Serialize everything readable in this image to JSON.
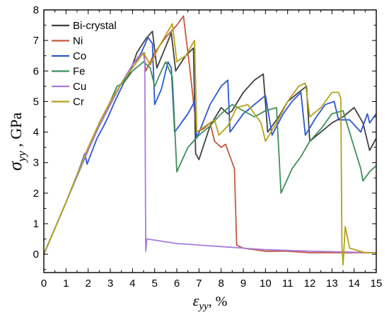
{
  "chart_data": {
    "type": "line",
    "xlabel": "ε_yy, %",
    "ylabel": "σ_yy , GPa",
    "xlabel_parts": {
      "symbol": "ε",
      "sub": "yy",
      "suffix": ", %"
    },
    "ylabel_parts": {
      "symbol": "σ",
      "sub": "yy",
      "suffix": " , GPa"
    },
    "xlim": [
      0,
      15
    ],
    "ylim": [
      -0.6,
      8
    ],
    "x_ticks": [
      "0",
      "1",
      "2",
      "3",
      "4",
      "5",
      "6",
      "7",
      "8",
      "9",
      "10",
      "11",
      "12",
      "13",
      "14",
      "15"
    ],
    "y_ticks": [
      "0",
      "1",
      "2",
      "3",
      "4",
      "5",
      "6",
      "7",
      "8"
    ],
    "grid": false,
    "legend_position": "top-left",
    "series": [
      {
        "name": "Bi-crystal",
        "color": "#404040",
        "points": [
          [
            0,
            0
          ],
          [
            0.5,
            0.85
          ],
          [
            1.0,
            1.7
          ],
          [
            1.5,
            2.6
          ],
          [
            2.0,
            3.45
          ],
          [
            2.5,
            4.2
          ],
          [
            3.0,
            4.9
          ],
          [
            3.5,
            5.6
          ],
          [
            3.8,
            5.8
          ],
          [
            4.2,
            6.6
          ],
          [
            4.6,
            7.05
          ],
          [
            4.9,
            7.3
          ],
          [
            5.1,
            6.1
          ],
          [
            5.5,
            6.8
          ],
          [
            5.75,
            7.25
          ],
          [
            5.95,
            6.0
          ],
          [
            6.4,
            6.5
          ],
          [
            6.75,
            6.75
          ],
          [
            6.85,
            3.3
          ],
          [
            7.0,
            3.1
          ],
          [
            7.5,
            4.2
          ],
          [
            8.0,
            4.8
          ],
          [
            8.3,
            4.6
          ],
          [
            8.5,
            4.7
          ],
          [
            9.0,
            5.3
          ],
          [
            9.5,
            5.7
          ],
          [
            9.9,
            5.9
          ],
          [
            10.1,
            4.0
          ],
          [
            10.6,
            4.5
          ],
          [
            11.0,
            5.0
          ],
          [
            11.5,
            5.3
          ],
          [
            11.85,
            5.5
          ],
          [
            12.0,
            3.7
          ],
          [
            12.5,
            4.0
          ],
          [
            13.0,
            4.3
          ],
          [
            13.5,
            4.5
          ],
          [
            14.0,
            4.8
          ],
          [
            14.4,
            4.3
          ],
          [
            14.7,
            3.4
          ],
          [
            15.0,
            3.8
          ]
        ]
      },
      {
        "name": "Ni",
        "color": "#c8573c",
        "points": [
          [
            0,
            0
          ],
          [
            0.5,
            0.85
          ],
          [
            1.0,
            1.7
          ],
          [
            1.5,
            2.6
          ],
          [
            2.0,
            3.4
          ],
          [
            2.5,
            4.2
          ],
          [
            3.0,
            4.9
          ],
          [
            3.5,
            5.6
          ],
          [
            4.0,
            6.2
          ],
          [
            4.5,
            6.6
          ],
          [
            4.6,
            6.0
          ],
          [
            5.0,
            6.6
          ],
          [
            5.5,
            7.1
          ],
          [
            6.0,
            7.5
          ],
          [
            6.3,
            7.8
          ],
          [
            6.6,
            6.0
          ],
          [
            6.9,
            4.0
          ],
          [
            7.2,
            4.1
          ],
          [
            7.5,
            4.3
          ],
          [
            7.7,
            3.7
          ],
          [
            8.0,
            3.5
          ],
          [
            8.2,
            3.6
          ],
          [
            8.4,
            3.2
          ],
          [
            8.6,
            2.8
          ],
          [
            8.7,
            0.3
          ],
          [
            9.0,
            0.2
          ],
          [
            9.5,
            0.15
          ],
          [
            10.0,
            0.1
          ],
          [
            11.0,
            0.1
          ],
          [
            12.0,
            0.05
          ],
          [
            13.0,
            0.05
          ],
          [
            14.0,
            0.05
          ],
          [
            15.0,
            0.05
          ]
        ]
      },
      {
        "name": "Co",
        "color": "#2c56d6",
        "points": [
          [
            0,
            0
          ],
          [
            0.5,
            0.85
          ],
          [
            1.0,
            1.7
          ],
          [
            1.5,
            2.6
          ],
          [
            1.85,
            3.3
          ],
          [
            1.95,
            2.95
          ],
          [
            2.4,
            3.8
          ],
          [
            2.7,
            4.2
          ],
          [
            2.9,
            4.5
          ],
          [
            3.2,
            5.0
          ],
          [
            3.6,
            5.6
          ],
          [
            4.0,
            6.2
          ],
          [
            4.4,
            6.6
          ],
          [
            4.7,
            7.1
          ],
          [
            4.9,
            6.9
          ],
          [
            5.0,
            4.9
          ],
          [
            5.3,
            5.4
          ],
          [
            5.6,
            6.3
          ],
          [
            5.75,
            6.1
          ],
          [
            5.9,
            4.0
          ],
          [
            6.5,
            4.6
          ],
          [
            6.8,
            5.0
          ],
          [
            6.9,
            3.8
          ],
          [
            7.5,
            4.9
          ],
          [
            8.0,
            5.5
          ],
          [
            8.3,
            5.7
          ],
          [
            8.4,
            4.0
          ],
          [
            9.0,
            4.6
          ],
          [
            9.5,
            4.9
          ],
          [
            10.0,
            5.2
          ],
          [
            10.3,
            3.9
          ],
          [
            10.8,
            4.6
          ],
          [
            11.2,
            5.0
          ],
          [
            11.6,
            5.3
          ],
          [
            11.8,
            3.9
          ],
          [
            12.3,
            4.5
          ],
          [
            12.7,
            4.9
          ],
          [
            13.1,
            5.0
          ],
          [
            13.3,
            4.4
          ],
          [
            13.8,
            4.4
          ],
          [
            14.3,
            4.0
          ],
          [
            14.6,
            4.6
          ],
          [
            14.7,
            4.3
          ],
          [
            15.0,
            4.6
          ]
        ]
      },
      {
        "name": "Fe",
        "color": "#3f8f5a",
        "points": [
          [
            0,
            0
          ],
          [
            0.5,
            0.85
          ],
          [
            1.0,
            1.7
          ],
          [
            1.5,
            2.55
          ],
          [
            2.0,
            3.4
          ],
          [
            2.5,
            4.3
          ],
          [
            3.0,
            5.0
          ],
          [
            3.3,
            5.5
          ],
          [
            3.6,
            5.6
          ],
          [
            4.0,
            6.0
          ],
          [
            4.5,
            6.3
          ],
          [
            4.8,
            6.1
          ],
          [
            5.0,
            5.5
          ],
          [
            5.3,
            6.0
          ],
          [
            5.5,
            6.3
          ],
          [
            5.8,
            5.8
          ],
          [
            6.0,
            2.7
          ],
          [
            6.5,
            3.5
          ],
          [
            7.0,
            3.9
          ],
          [
            7.5,
            4.2
          ],
          [
            8.0,
            4.6
          ],
          [
            8.5,
            4.9
          ],
          [
            9.0,
            4.7
          ],
          [
            9.5,
            4.5
          ],
          [
            10.0,
            4.7
          ],
          [
            10.5,
            4.8
          ],
          [
            10.7,
            2.0
          ],
          [
            11.2,
            2.8
          ],
          [
            11.6,
            3.2
          ],
          [
            12.0,
            3.7
          ],
          [
            12.5,
            4.1
          ],
          [
            12.9,
            4.5
          ],
          [
            13.0,
            4.6
          ],
          [
            13.5,
            4.7
          ],
          [
            14.0,
            3.5
          ],
          [
            14.3,
            2.8
          ],
          [
            14.4,
            2.4
          ],
          [
            14.7,
            2.7
          ],
          [
            15.0,
            2.9
          ]
        ]
      },
      {
        "name": "Cu",
        "color": "#a97ce0",
        "points": [
          [
            0,
            0
          ],
          [
            0.5,
            0.85
          ],
          [
            1.0,
            1.7
          ],
          [
            1.5,
            2.55
          ],
          [
            2.0,
            3.4
          ],
          [
            2.5,
            4.2
          ],
          [
            3.0,
            4.9
          ],
          [
            3.5,
            5.6
          ],
          [
            4.0,
            6.2
          ],
          [
            4.3,
            6.5
          ],
          [
            4.55,
            6.6
          ],
          [
            4.6,
            0.1
          ],
          [
            4.65,
            0.5
          ],
          [
            6.0,
            0.35
          ],
          [
            8.0,
            0.25
          ],
          [
            10.0,
            0.15
          ],
          [
            12.0,
            0.1
          ],
          [
            15.0,
            0.05
          ]
        ]
      },
      {
        "name": "Cr",
        "color": "#b5a11b",
        "points": [
          [
            0,
            0
          ],
          [
            0.5,
            0.85
          ],
          [
            1.0,
            1.7
          ],
          [
            1.5,
            2.6
          ],
          [
            2.0,
            3.5
          ],
          [
            2.5,
            4.3
          ],
          [
            3.0,
            5.0
          ],
          [
            3.5,
            5.6
          ],
          [
            4.0,
            6.1
          ],
          [
            4.5,
            6.6
          ],
          [
            4.8,
            6.2
          ],
          [
            5.2,
            6.8
          ],
          [
            5.6,
            7.3
          ],
          [
            5.8,
            7.55
          ],
          [
            6.0,
            6.3
          ],
          [
            6.4,
            6.5
          ],
          [
            6.8,
            7.0
          ],
          [
            6.9,
            4.0
          ],
          [
            7.3,
            4.2
          ],
          [
            7.7,
            4.4
          ],
          [
            7.9,
            3.9
          ],
          [
            8.3,
            4.2
          ],
          [
            8.7,
            4.8
          ],
          [
            9.2,
            4.9
          ],
          [
            9.8,
            4.3
          ],
          [
            10.0,
            3.7
          ],
          [
            10.5,
            4.3
          ],
          [
            11.0,
            5.0
          ],
          [
            11.5,
            5.5
          ],
          [
            11.8,
            5.6
          ],
          [
            12.0,
            4.5
          ],
          [
            12.5,
            4.8
          ],
          [
            13.0,
            5.3
          ],
          [
            13.3,
            5.3
          ],
          [
            13.4,
            5.1
          ],
          [
            13.45,
            0.3
          ],
          [
            13.5,
            -0.35
          ],
          [
            13.6,
            0.9
          ],
          [
            13.8,
            0.2
          ],
          [
            14.5,
            0.05
          ],
          [
            15.0,
            0.05
          ]
        ]
      }
    ]
  }
}
